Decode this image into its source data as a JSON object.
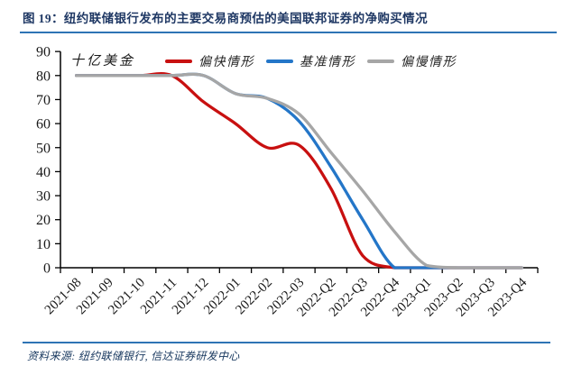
{
  "page": {
    "title": "图 19：纽约联储银行发布的主要交易商预估的美国联邦证券的净购买情况",
    "source_note": "资料来源: 纽约联储银行, 信达证券研发中心"
  },
  "colors": {
    "title_navy": "#1F3864",
    "rule_blue": "#2E74B5",
    "axis": "#000000",
    "red": "#C81010",
    "blue": "#2476C8",
    "gray": "#A6A6A6"
  },
  "chart_data": {
    "type": "line",
    "unit_label": "十亿美金",
    "categories": [
      "2021-08",
      "2021-09",
      "2021-10",
      "2021-11",
      "2021-12",
      "2022-01",
      "2022-02",
      "2022-03",
      "2022-Q2",
      "2022-Q3",
      "2022-Q4",
      "2023-Q1",
      "2023-Q2",
      "2023-Q3",
      "2023-Q4"
    ],
    "series": [
      {
        "key": "fast",
        "name": "偏快情形",
        "color_key": "red",
        "values": [
          80,
          80,
          80,
          80,
          69,
          60,
          50,
          51,
          33,
          5,
          0,
          0,
          0,
          0,
          0
        ]
      },
      {
        "key": "base",
        "name": "基准情形",
        "color_key": "blue",
        "values": [
          80,
          80,
          80,
          80,
          80,
          72.5,
          70.5,
          61,
          42,
          20,
          0,
          0,
          0,
          0,
          0
        ]
      },
      {
        "key": "slow",
        "name": "偏慢情形",
        "color_key": "gray",
        "values": [
          80,
          80,
          80,
          80,
          80,
          72.5,
          70.5,
          64,
          48,
          32,
          15,
          1,
          0,
          0,
          0
        ]
      }
    ],
    "ylim": [
      0,
      90
    ],
    "yticks": [
      0,
      10,
      20,
      30,
      40,
      50,
      60,
      70,
      80,
      90
    ],
    "legend_position": "top",
    "grid": false,
    "line_style": "smooth"
  }
}
